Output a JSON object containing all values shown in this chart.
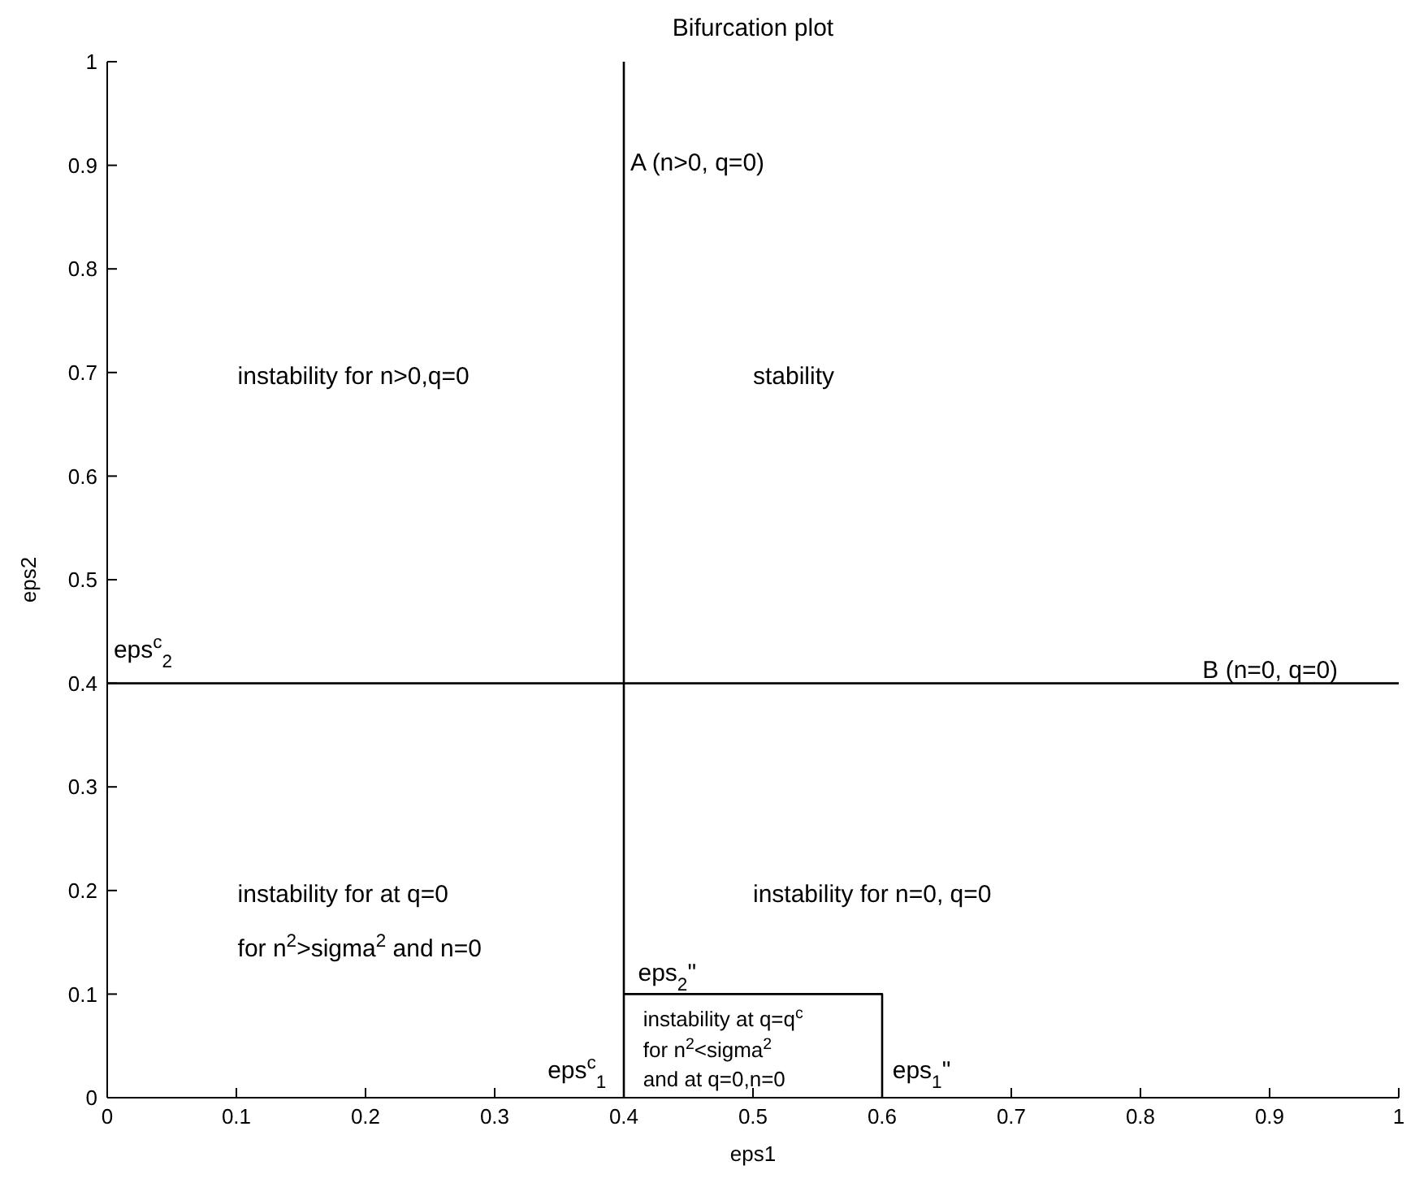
{
  "chart_data": {
    "type": "line",
    "title": "Bifurcation plot",
    "xlabel": "eps1",
    "ylabel": "eps2",
    "xlim": [
      0,
      1
    ],
    "ylim": [
      0,
      1
    ],
    "xticks": [
      0,
      0.1,
      0.2,
      0.3,
      0.4,
      0.5,
      0.6,
      0.7,
      0.8,
      0.9,
      1
    ],
    "yticks": [
      0,
      0.1,
      0.2,
      0.3,
      0.4,
      0.5,
      0.6,
      0.7,
      0.8,
      0.9,
      1
    ],
    "series": [
      {
        "color": "#000000",
        "x": [
          0.6,
          0.6,
          0.4
        ],
        "values": [
          0,
          0.1,
          0.1
        ]
      },
      {
        "color": "#000000",
        "x": [
          0,
          1
        ],
        "values": [
          0.4,
          0.4
        ]
      }
    ],
    "ref_lines": [
      {
        "axis": "x",
        "value": 0.4,
        "color": "#000000"
      }
    ],
    "annotations": [
      {
        "text": "A (n>0, q=0)",
        "x": 0.405,
        "y": 0.895
      },
      "instability for n>0,q=0",
      "stability",
      "eps$^{c}$$_{2}$",
      {
        "text": "B (n=0, q=0)",
        "x": 0.848,
        "y": 0.405
      },
      "instability for at q=0",
      "for n$^{2}$>sigma$^{2}$ and n=0",
      "instability for n=0, q=0",
      "eps$_{2}$\"",
      "instability at q=q$^{c}$",
      "for n$^{2}$<sigma$^{2}$",
      "and at q=0,n=0",
      "eps$^{c}$$_{1}$",
      "eps$_{1}$\""
    ]
  }
}
